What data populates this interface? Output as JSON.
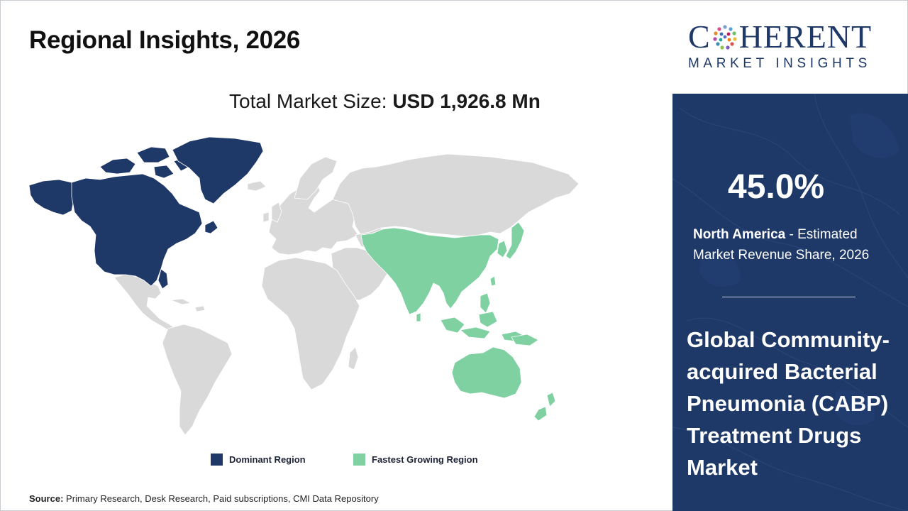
{
  "header": {
    "title": "Regional Insights, 2026"
  },
  "market_size": {
    "label": "Total Market Size: ",
    "value": "USD 1,926.8 Mn"
  },
  "map": {
    "regions": [
      {
        "name": "North America",
        "status": "Dominant Region"
      },
      {
        "name": "Asia Pacific",
        "status": "Fastest Growing Region"
      }
    ]
  },
  "legend": {
    "dominant": {
      "label": "Dominant Region",
      "color": "#1e3868"
    },
    "fastest": {
      "label": "Fastest Growing Region",
      "color": "#7fd1a2"
    }
  },
  "colors": {
    "other_land": "#d9d9d9",
    "panel": "#1e3868",
    "border": "#ffffff"
  },
  "source": {
    "label": "Source:",
    "text": " Primary Research, Desk Research, Paid subscriptions, CMI Data Repository"
  },
  "brand": {
    "name_left": "C",
    "name_right": "HERENT",
    "tagline": "MARKET INSIGHTS",
    "logo_icon": "dot-grid-o-icon"
  },
  "highlight": {
    "value": "45.0%",
    "region": "North America",
    "description": " - Estimated Market Revenue Share, 2026"
  },
  "market_name": "Global Community-acquired Bacterial Pneumonia (CABP) Treatment Drugs Market"
}
